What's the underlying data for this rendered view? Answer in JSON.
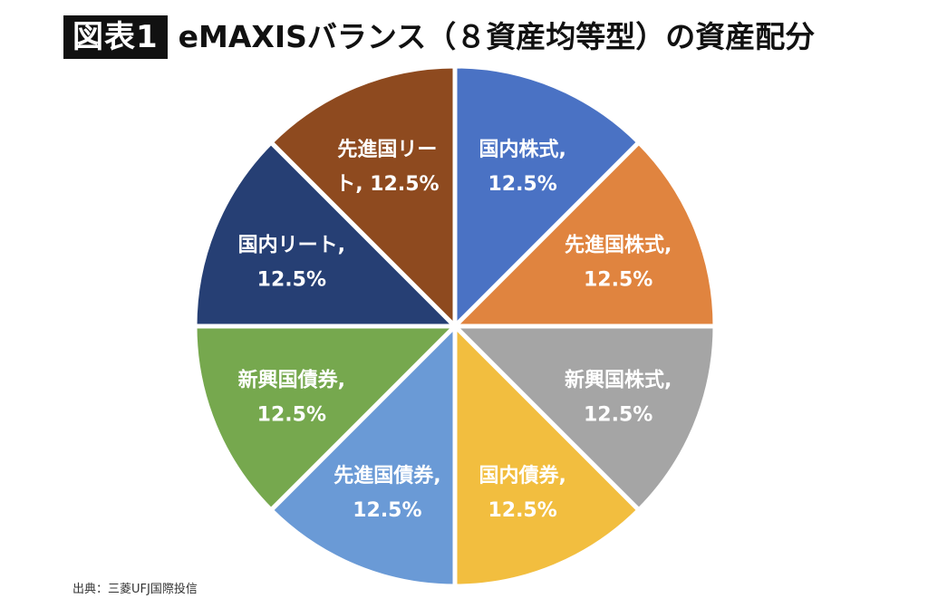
{
  "header": {
    "badge": "図表1",
    "title": "eMAXISバランス（８資産均等型）の資産配分"
  },
  "source": "出典：三菱UFJ国際投信",
  "chart_data": {
    "type": "pie",
    "title": "eMAXISバランス（８資産均等型）の資産配分",
    "slices": [
      {
        "label": "国内株式",
        "value": 12.5,
        "color": "#4A72C4",
        "line1": "国内株式,",
        "line2": "12.5%"
      },
      {
        "label": "先進国株式",
        "value": 12.5,
        "color": "#E0843F",
        "line1": "先進国株式,",
        "line2": "12.5%"
      },
      {
        "label": "新興国株式",
        "value": 12.5,
        "color": "#A5A5A5",
        "line1": "新興国株式,",
        "line2": "12.5%"
      },
      {
        "label": "国内債券",
        "value": 12.5,
        "color": "#F2BE3F",
        "line1": "国内債券,",
        "line2": "12.5%"
      },
      {
        "label": "先進国債券",
        "value": 12.5,
        "color": "#6A9AD6",
        "line1": "先進国債券,",
        "line2": "12.5%"
      },
      {
        "label": "新興国債券",
        "value": 12.5,
        "color": "#76A84E",
        "line1": "新興国債券,",
        "line2": "12.5%"
      },
      {
        "label": "国内リート",
        "value": 12.5,
        "color": "#263F74",
        "line1": "国内リート,",
        "line2": "12.5%"
      },
      {
        "label": "先進国リート",
        "value": 12.5,
        "color": "#8E4A1F",
        "line1": "先進国リー",
        "line2": "ト, 12.5%"
      }
    ]
  }
}
